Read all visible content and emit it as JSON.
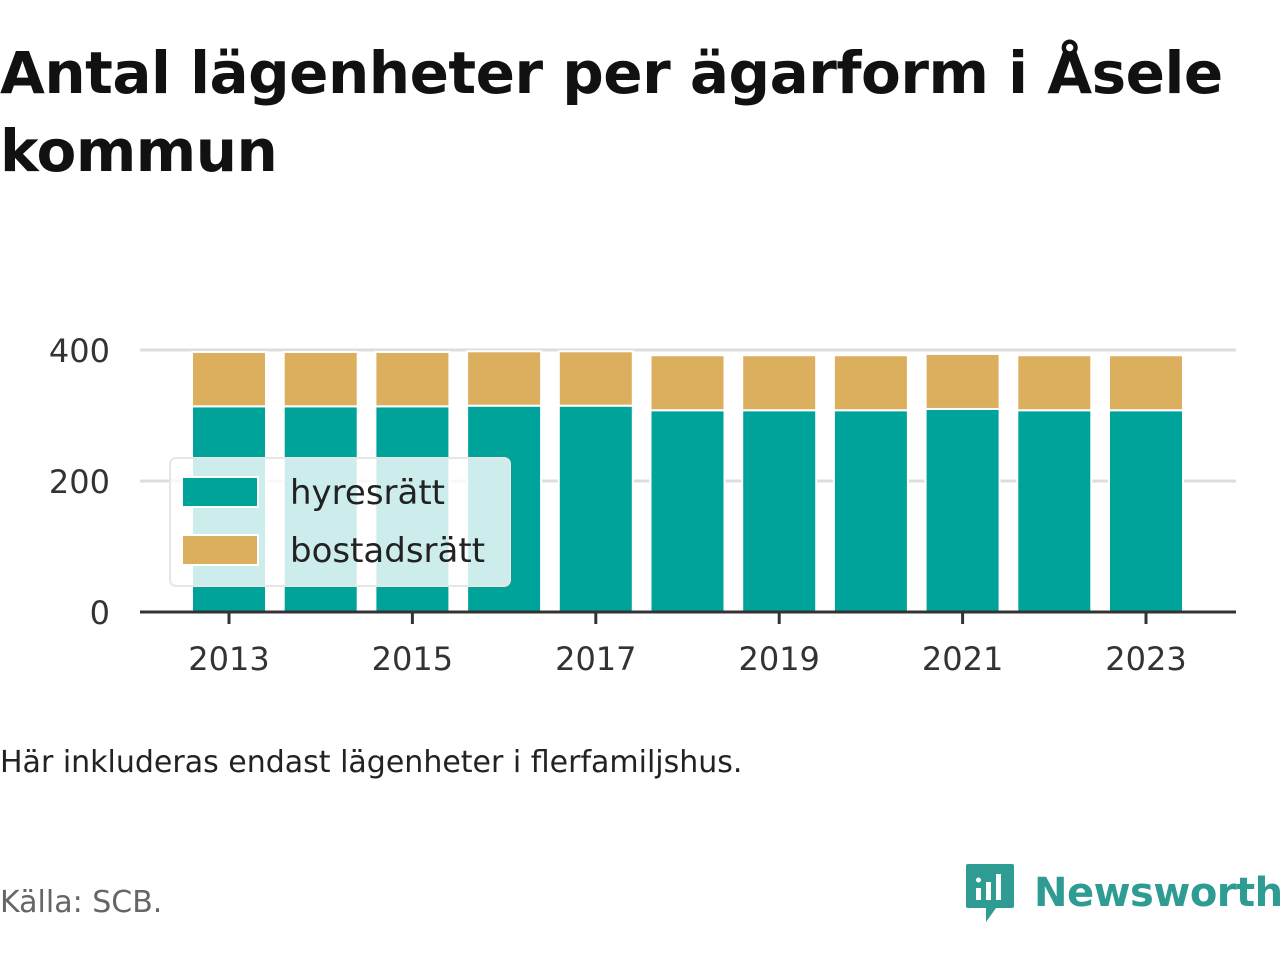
{
  "title": "Antal lägenheter per ägarform i Åsele kommun",
  "note": "Här inkluderas endast lägenheter i flerfamiljshus.",
  "source": "Källa: SCB.",
  "logo": {
    "text": "Newsworthy",
    "icon": "bar-chart-speech-bubble-icon",
    "color": "#2e9c93"
  },
  "chart_data": {
    "type": "bar",
    "stacked": true,
    "title": "Antal lägenheter per ägarform i Åsele kommun",
    "xlabel": "",
    "ylabel": "",
    "categories": [
      "2013",
      "2014",
      "2015",
      "2016",
      "2017",
      "2018",
      "2019",
      "2020",
      "2021",
      "2022",
      "2023"
    ],
    "x_tick_labels": [
      "2013",
      "2015",
      "2017",
      "2019",
      "2021",
      "2023"
    ],
    "y_ticks": [
      0,
      200,
      400
    ],
    "ylim": [
      0,
      400
    ],
    "grid": "horizontal",
    "legend_position": "left",
    "series": [
      {
        "name": "hyresrätt",
        "color": "#00a39a",
        "values": [
          314,
          314,
          314,
          315,
          315,
          308,
          308,
          308,
          310,
          308,
          308
        ]
      },
      {
        "name": "bostadsrätt",
        "color": "#dbaf5d",
        "values": [
          83,
          83,
          83,
          83,
          83,
          84,
          84,
          84,
          84,
          84,
          84
        ]
      }
    ]
  }
}
